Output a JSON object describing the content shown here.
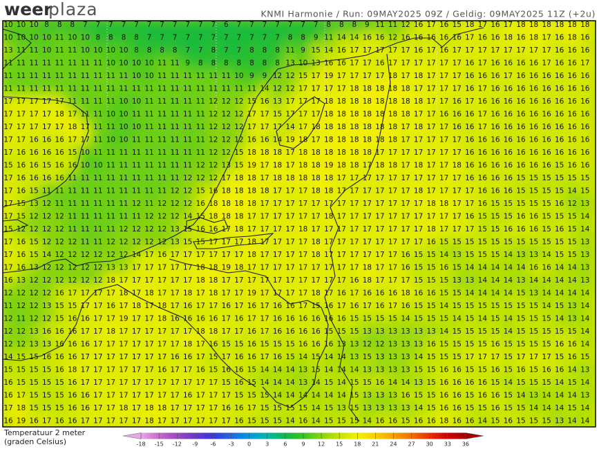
{
  "header": {
    "logo_bold": "weer",
    "logo_light": "plaza",
    "info": "KNMI Harmonie / Run: 09MAY2025 09Z / Geldig: 09MAY2025 11Z (+2u)"
  },
  "map": {
    "rows": [
      [
        10,
        10,
        10,
        8,
        8,
        8,
        7,
        7,
        7,
        7,
        7,
        7,
        7,
        7,
        7,
        7,
        7,
        6,
        7,
        7,
        7,
        7,
        7,
        7,
        7,
        8,
        8,
        8,
        9,
        11,
        11,
        12,
        16,
        17,
        16,
        15,
        18,
        17,
        16,
        17,
        18,
        18,
        18,
        18,
        18,
        18
      ],
      [
        10,
        10,
        10,
        10,
        11,
        10,
        10,
        8,
        8,
        8,
        8,
        7,
        7,
        7,
        7,
        7,
        7,
        7,
        7,
        7,
        7,
        7,
        8,
        8,
        9,
        11,
        14,
        14,
        16,
        16,
        12,
        16,
        16,
        16,
        16,
        16,
        17,
        16,
        16,
        18,
        16,
        18,
        17,
        16,
        18,
        16
      ],
      [
        13,
        11,
        11,
        10,
        11,
        11,
        10,
        10,
        10,
        10,
        8,
        8,
        8,
        8,
        7,
        7,
        8,
        7,
        7,
        8,
        8,
        8,
        11,
        9,
        15,
        14,
        16,
        17,
        17,
        17,
        17,
        17,
        16,
        17,
        16,
        17,
        17,
        17,
        17,
        17,
        17,
        17,
        17,
        16,
        16,
        16
      ],
      [
        11,
        11,
        11,
        11,
        11,
        11,
        11,
        11,
        10,
        10,
        10,
        10,
        11,
        11,
        9,
        8,
        8,
        8,
        8,
        8,
        8,
        8,
        13,
        10,
        13,
        16,
        16,
        17,
        17,
        16,
        17,
        17,
        17,
        17,
        17,
        17,
        16,
        17,
        16,
        16,
        16,
        16,
        17,
        16,
        16,
        17
      ],
      [
        11,
        11,
        11,
        11,
        11,
        11,
        11,
        11,
        11,
        11,
        10,
        10,
        11,
        11,
        11,
        11,
        11,
        11,
        10,
        9,
        9,
        12,
        12,
        15,
        17,
        19,
        17,
        17,
        17,
        17,
        18,
        17,
        18,
        17,
        17,
        17,
        16,
        16,
        16,
        17,
        16,
        16,
        16,
        16,
        16,
        16
      ],
      [
        11,
        11,
        11,
        11,
        11,
        11,
        11,
        11,
        11,
        11,
        11,
        11,
        11,
        11,
        11,
        11,
        11,
        11,
        11,
        11,
        14,
        12,
        12,
        17,
        17,
        17,
        17,
        18,
        18,
        18,
        18,
        18,
        17,
        17,
        17,
        17,
        16,
        17,
        16,
        16,
        16,
        16,
        16,
        16,
        16,
        16
      ],
      [
        17,
        17,
        17,
        17,
        17,
        11,
        11,
        11,
        11,
        10,
        10,
        11,
        11,
        11,
        11,
        11,
        12,
        12,
        12,
        15,
        16,
        13,
        17,
        17,
        17,
        18,
        18,
        18,
        18,
        18,
        18,
        18,
        18,
        17,
        17,
        16,
        17,
        16,
        16,
        16,
        16,
        16,
        16,
        16,
        16,
        16
      ],
      [
        17,
        17,
        17,
        17,
        18,
        17,
        11,
        11,
        10,
        10,
        11,
        11,
        11,
        11,
        11,
        11,
        12,
        12,
        12,
        17,
        17,
        15,
        17,
        17,
        17,
        18,
        18,
        18,
        18,
        18,
        18,
        18,
        17,
        17,
        16,
        16,
        16,
        17,
        16,
        16,
        16,
        16,
        16,
        16,
        16,
        16
      ],
      [
        17,
        17,
        17,
        17,
        17,
        18,
        17,
        11,
        11,
        10,
        10,
        11,
        11,
        11,
        11,
        11,
        12,
        12,
        12,
        17,
        17,
        17,
        14,
        17,
        18,
        18,
        18,
        18,
        18,
        18,
        18,
        17,
        18,
        17,
        17,
        16,
        16,
        17,
        16,
        16,
        16,
        16,
        16,
        16,
        16,
        16
      ],
      [
        17,
        17,
        16,
        16,
        16,
        17,
        17,
        11,
        10,
        10,
        11,
        11,
        11,
        11,
        11,
        11,
        12,
        12,
        12,
        16,
        16,
        14,
        19,
        18,
        17,
        18,
        18,
        18,
        18,
        18,
        18,
        17,
        17,
        17,
        17,
        17,
        16,
        16,
        16,
        16,
        16,
        16,
        16,
        16,
        16,
        16
      ],
      [
        17,
        16,
        16,
        16,
        16,
        15,
        10,
        11,
        11,
        11,
        11,
        11,
        11,
        11,
        11,
        11,
        12,
        12,
        15,
        18,
        18,
        18,
        17,
        18,
        18,
        18,
        18,
        18,
        18,
        17,
        17,
        17,
        17,
        17,
        17,
        17,
        16,
        16,
        16,
        16,
        16,
        16,
        16,
        16,
        16,
        16
      ],
      [
        15,
        16,
        16,
        15,
        16,
        16,
        10,
        10,
        11,
        11,
        11,
        11,
        11,
        11,
        11,
        12,
        12,
        13,
        15,
        19,
        17,
        18,
        17,
        18,
        18,
        19,
        18,
        18,
        17,
        18,
        18,
        17,
        18,
        17,
        17,
        18,
        16,
        16,
        16,
        16,
        16,
        16,
        16,
        15,
        16,
        16
      ],
      [
        17,
        16,
        16,
        16,
        16,
        11,
        11,
        11,
        11,
        11,
        11,
        11,
        11,
        11,
        12,
        12,
        12,
        17,
        18,
        18,
        17,
        18,
        18,
        18,
        18,
        18,
        17,
        17,
        17,
        17,
        17,
        17,
        17,
        17,
        17,
        17,
        16,
        16,
        16,
        16,
        15,
        15,
        15,
        15,
        15,
        15
      ],
      [
        17,
        16,
        15,
        11,
        11,
        11,
        11,
        11,
        11,
        11,
        11,
        11,
        11,
        12,
        12,
        15,
        16,
        18,
        18,
        18,
        18,
        17,
        17,
        17,
        18,
        18,
        17,
        17,
        17,
        17,
        17,
        17,
        18,
        17,
        17,
        17,
        17,
        16,
        16,
        16,
        15,
        15,
        15,
        15,
        14,
        15
      ],
      [
        17,
        15,
        13,
        12,
        11,
        11,
        11,
        11,
        11,
        11,
        12,
        11,
        12,
        12,
        12,
        16,
        18,
        18,
        18,
        18,
        17,
        17,
        17,
        17,
        17,
        17,
        17,
        17,
        17,
        17,
        17,
        17,
        17,
        18,
        18,
        17,
        17,
        16,
        15,
        15,
        15,
        15,
        15,
        16,
        12,
        13
      ],
      [
        17,
        15,
        12,
        12,
        12,
        11,
        11,
        11,
        11,
        11,
        11,
        12,
        12,
        12,
        14,
        15,
        18,
        18,
        18,
        17,
        17,
        17,
        17,
        17,
        17,
        18,
        17,
        17,
        17,
        17,
        17,
        17,
        17,
        17,
        17,
        17,
        16,
        15,
        15,
        15,
        16,
        16,
        15,
        15,
        15,
        14
      ],
      [
        15,
        12,
        12,
        12,
        12,
        11,
        11,
        11,
        11,
        12,
        12,
        12,
        12,
        13,
        15,
        16,
        16,
        17,
        18,
        17,
        17,
        17,
        17,
        18,
        17,
        17,
        17,
        17,
        17,
        17,
        17,
        17,
        17,
        18,
        17,
        17,
        17,
        15,
        15,
        16,
        16,
        16,
        15,
        16,
        15,
        14
      ],
      [
        17,
        16,
        15,
        12,
        12,
        12,
        11,
        11,
        12,
        12,
        12,
        12,
        12,
        13,
        15,
        15,
        17,
        17,
        17,
        18,
        17,
        17,
        17,
        17,
        18,
        17,
        17,
        17,
        17,
        17,
        17,
        17,
        17,
        16,
        15,
        15,
        15,
        15,
        15,
        15,
        15,
        15,
        15,
        15,
        15,
        13
      ],
      [
        17,
        16,
        15,
        14,
        12,
        12,
        12,
        12,
        12,
        12,
        14,
        17,
        16,
        17,
        17,
        17,
        17,
        17,
        17,
        18,
        17,
        17,
        17,
        17,
        18,
        17,
        17,
        17,
        17,
        17,
        17,
        16,
        15,
        15,
        14,
        13,
        15,
        15,
        15,
        14,
        13,
        13,
        14,
        15,
        15,
        13
      ],
      [
        17,
        16,
        13,
        12,
        12,
        12,
        12,
        12,
        13,
        13,
        17,
        17,
        17,
        17,
        17,
        18,
        18,
        19,
        18,
        17,
        17,
        17,
        17,
        17,
        17,
        17,
        17,
        17,
        18,
        17,
        17,
        16,
        15,
        15,
        16,
        15,
        14,
        14,
        14,
        14,
        14,
        16,
        16,
        14,
        14,
        13
      ],
      [
        16,
        13,
        12,
        12,
        12,
        12,
        12,
        12,
        18,
        17,
        17,
        17,
        17,
        17,
        17,
        18,
        18,
        17,
        17,
        17,
        17,
        17,
        17,
        17,
        17,
        17,
        17,
        16,
        18,
        17,
        17,
        17,
        15,
        15,
        15,
        13,
        13,
        14,
        14,
        14,
        13,
        14,
        14,
        14,
        14,
        13
      ],
      [
        12,
        12,
        12,
        12,
        16,
        17,
        17,
        17,
        17,
        18,
        17,
        18,
        17,
        17,
        18,
        17,
        18,
        17,
        17,
        19,
        17,
        17,
        17,
        17,
        18,
        17,
        16,
        17,
        16,
        16,
        16,
        18,
        16,
        16,
        15,
        15,
        14,
        14,
        14,
        14,
        15,
        13,
        14,
        14,
        14,
        14
      ],
      [
        11,
        12,
        12,
        13,
        15,
        15,
        17,
        17,
        16,
        17,
        18,
        17,
        18,
        17,
        16,
        17,
        17,
        16,
        17,
        16,
        17,
        16,
        16,
        17,
        15,
        16,
        17,
        16,
        17,
        16,
        17,
        16,
        15,
        15,
        14,
        15,
        15,
        15,
        15,
        15,
        15,
        15,
        14,
        15,
        13,
        14
      ],
      [
        12,
        11,
        12,
        12,
        15,
        16,
        16,
        17,
        17,
        19,
        17,
        17,
        18,
        16,
        16,
        16,
        16,
        17,
        16,
        17,
        17,
        16,
        16,
        16,
        16,
        16,
        16,
        15,
        15,
        15,
        15,
        14,
        15,
        15,
        15,
        14,
        15,
        14,
        15,
        14,
        15,
        15,
        15,
        14,
        13,
        14
      ],
      [
        12,
        12,
        13,
        16,
        16,
        16,
        17,
        17,
        18,
        17,
        17,
        17,
        17,
        17,
        17,
        18,
        18,
        17,
        17,
        16,
        17,
        16,
        16,
        16,
        16,
        15,
        15,
        15,
        13,
        13,
        13,
        13,
        13,
        13,
        14,
        15,
        15,
        15,
        15,
        14,
        15,
        15,
        15,
        15,
        15,
        14
      ],
      [
        12,
        12,
        13,
        13,
        16,
        16,
        16,
        17,
        17,
        17,
        17,
        17,
        17,
        17,
        18,
        17,
        16,
        15,
        15,
        16,
        15,
        15,
        15,
        16,
        16,
        16,
        13,
        13,
        12,
        12,
        13,
        13,
        13,
        16,
        15,
        15,
        15,
        15,
        16,
        15,
        15,
        15,
        15,
        16,
        16,
        14
      ],
      [
        14,
        15,
        15,
        16,
        16,
        16,
        17,
        17,
        17,
        17,
        17,
        17,
        17,
        16,
        16,
        17,
        15,
        17,
        16,
        16,
        17,
        16,
        15,
        14,
        15,
        14,
        14,
        13,
        15,
        13,
        13,
        13,
        14,
        15,
        15,
        15,
        17,
        17,
        17,
        15,
        17,
        17,
        17,
        15,
        16,
        15
      ],
      [
        15,
        15,
        15,
        15,
        16,
        18,
        17,
        17,
        17,
        17,
        17,
        17,
        16,
        17,
        17,
        16,
        15,
        16,
        16,
        15,
        14,
        14,
        14,
        13,
        15,
        14,
        14,
        14,
        13,
        13,
        13,
        13,
        15,
        15,
        16,
        16,
        15,
        15,
        16,
        15,
        16,
        15,
        16,
        16,
        14,
        13
      ],
      [
        16,
        15,
        15,
        15,
        15,
        16,
        17,
        17,
        17,
        17,
        17,
        17,
        17,
        17,
        17,
        17,
        17,
        15,
        16,
        15,
        14,
        14,
        14,
        13,
        14,
        15,
        14,
        15,
        15,
        16,
        14,
        14,
        13,
        15,
        16,
        16,
        16,
        16,
        15,
        14,
        15,
        15,
        15,
        14,
        15,
        14
      ],
      [
        16,
        17,
        15,
        15,
        15,
        16,
        16,
        17,
        17,
        17,
        17,
        17,
        17,
        17,
        16,
        17,
        17,
        17,
        15,
        15,
        15,
        14,
        14,
        14,
        14,
        14,
        14,
        15,
        13,
        13,
        13,
        16,
        15,
        15,
        16,
        16,
        15,
        16,
        16,
        15,
        14,
        13,
        14,
        14,
        14,
        13
      ],
      [
        17,
        18,
        15,
        15,
        15,
        16,
        16,
        17,
        17,
        18,
        17,
        18,
        18,
        17,
        17,
        17,
        17,
        16,
        16,
        17,
        15,
        15,
        15,
        15,
        14,
        15,
        13,
        15,
        13,
        13,
        13,
        13,
        14,
        15,
        16,
        16,
        15,
        15,
        16,
        15,
        15,
        14,
        14,
        14,
        15,
        14
      ],
      [
        16,
        19,
        16,
        17,
        16,
        16,
        17,
        17,
        17,
        17,
        17,
        18,
        17,
        17,
        17,
        17,
        17,
        17,
        16,
        15,
        15,
        15,
        14,
        16,
        14,
        15,
        15,
        15,
        14,
        16,
        16,
        15,
        16,
        16,
        18,
        16,
        16,
        14,
        15,
        16,
        15,
        15,
        15,
        13,
        14,
        14
      ]
    ]
  },
  "legend": {
    "title": "Temperatuur 2 meter",
    "unit": "(graden Celsius)",
    "ticks": [
      -18,
      -15,
      -12,
      -9,
      -6,
      -3,
      0,
      3,
      6,
      9,
      12,
      15,
      18,
      21,
      24,
      27,
      30,
      33,
      36
    ],
    "range": [
      -21,
      39
    ],
    "colors": [
      "#e6a8e6",
      "#c868c8",
      "#9848c0",
      "#6838c8",
      "#3838d8",
      "#2068e0",
      "#0098e0",
      "#00b8a8",
      "#10b848",
      "#38c420",
      "#88d410",
      "#c4e400",
      "#f0f000",
      "#f8d000",
      "#f8a000",
      "#f07000",
      "#e83000",
      "#d00000",
      "#a00000"
    ]
  }
}
